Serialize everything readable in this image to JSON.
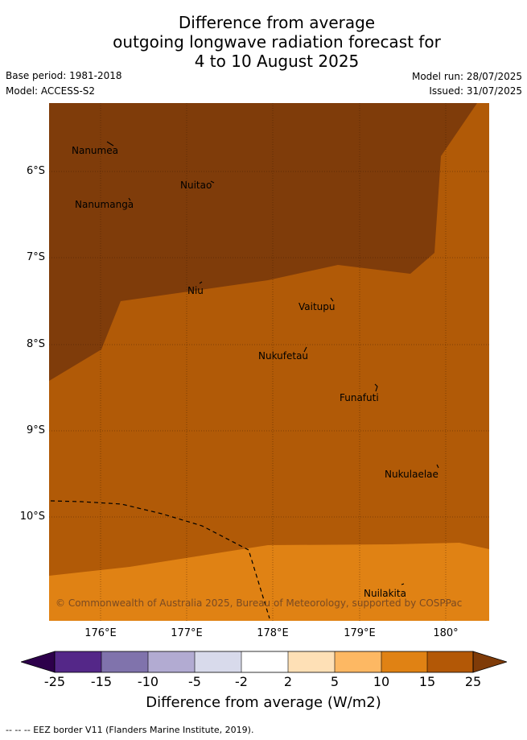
{
  "title": {
    "line1": "Difference from average",
    "line2": "outgoing longwave radiation forecast for",
    "line3": "4 to 10 August 2025"
  },
  "meta": {
    "base_period": "Base period: 1981-2018",
    "model": "Model: ACCESS-S2",
    "model_run": "Model run: 28/07/2025",
    "issued": "Issued: 31/07/2025"
  },
  "map": {
    "lat_ticks": [
      "6°S",
      "7°S",
      "8°S",
      "9°S",
      "10°S"
    ],
    "lon_ticks": [
      "176°E",
      "177°E",
      "178°E",
      "179°E",
      "180°"
    ],
    "places": [
      {
        "name": "Nanumea"
      },
      {
        "name": "Nuitao"
      },
      {
        "name": "Nanumanga"
      },
      {
        "name": "Niu"
      },
      {
        "name": "Vaitupu"
      },
      {
        "name": "Nukufetau"
      },
      {
        "name": "Funafuti"
      },
      {
        "name": "Nukulaelae"
      },
      {
        "name": "Nuilakita"
      }
    ],
    "copyright": "© Commonwealth of Australia 2025, Bureau of Meteorology, supported by COSPPac",
    "colors": {
      "band_15_25": "#b15a07",
      "band_25_plus": "#7f3c0a",
      "band_10_15": "#e08214"
    }
  },
  "colorbar": {
    "ticks": [
      "-25",
      "-15",
      "-10",
      "-5",
      "-2",
      "2",
      "5",
      "10",
      "15",
      "25"
    ],
    "colors": [
      "#2d004b",
      "#542788",
      "#8073ac",
      "#b2abd2",
      "#d8daeb",
      "#ffffff",
      "#fee0b6",
      "#fdb863",
      "#e08214",
      "#b35806",
      "#7f3b08"
    ],
    "label": "Difference from average (W/m2)"
  },
  "footnote": "-- -- -- EEZ border V11 (Flanders Marine Institute, 2019)."
}
